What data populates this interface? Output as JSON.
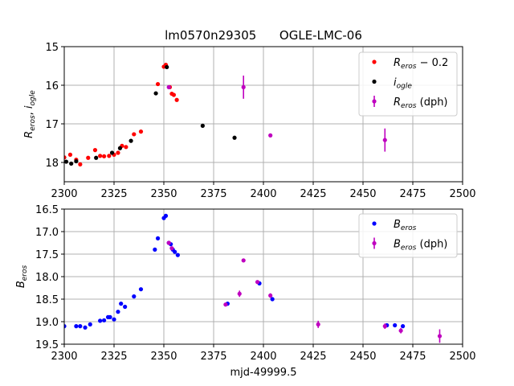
{
  "title": "lm0570n29305      OGLE-LMC-06",
  "chart_data": [
    {
      "type": "scatter",
      "ylabel": "R_eros, i_ogle",
      "xlim": [
        2300,
        2500
      ],
      "ylim": [
        18.5,
        15
      ],
      "y_inverted": true,
      "xticks": [
        2300,
        2325,
        2350,
        2375,
        2400,
        2425,
        2450,
        2475,
        2500
      ],
      "yticks": [
        15,
        16,
        17,
        18
      ],
      "grid": true,
      "legend_position": "top-right",
      "series": [
        {
          "name": "R_eros − 0.2",
          "legend_main": "R",
          "legend_sub": "eros",
          "legend_suffix": " − 0.2",
          "color": "#ff0000",
          "marker": "dot",
          "x": [
            2300,
            2303,
            2306,
            2308,
            2312,
            2315.5,
            2318,
            2320,
            2322.5,
            2325,
            2327,
            2329,
            2331,
            2335,
            2338.5,
            2347,
            2350,
            2351,
            2353,
            2354,
            2355,
            2356.5
          ],
          "y": [
            17.87,
            17.8,
            17.93,
            18.05,
            17.88,
            17.68,
            17.83,
            17.84,
            17.83,
            17.8,
            17.75,
            17.57,
            17.6,
            17.27,
            17.2,
            15.97,
            15.52,
            15.47,
            16.05,
            16.22,
            16.25,
            16.38
          ]
        },
        {
          "name": "i_ogle",
          "legend_main": "i",
          "legend_sub": "ogle",
          "legend_suffix": "",
          "color": "#000000",
          "marker": "dot",
          "x": [
            2301,
            2303.5,
            2306,
            2316,
            2324,
            2328,
            2333.5,
            2346,
            2351.5,
            2369.5,
            2385.5
          ],
          "y": [
            17.98,
            18.03,
            17.97,
            17.88,
            17.75,
            17.63,
            17.44,
            16.21,
            15.53,
            17.05,
            17.36
          ]
        },
        {
          "name": "R_eros (dph)",
          "legend_main": "R",
          "legend_sub": "eros",
          "legend_suffix": " (dph)",
          "color": "#bf00bf",
          "marker": "errorbar",
          "x": [
            2352.5,
            2390,
            2403.5,
            2461
          ],
          "y": [
            16.05,
            16.05,
            17.3,
            17.42
          ],
          "yerr": [
            0,
            0.3,
            0,
            0.3
          ]
        }
      ]
    },
    {
      "type": "scatter",
      "ylabel": "B_eros",
      "xlabel": "mjd-49999.5",
      "xlim": [
        2300,
        2500
      ],
      "ylim": [
        19.5,
        16.5
      ],
      "y_inverted": true,
      "xticks": [
        2300,
        2325,
        2350,
        2375,
        2400,
        2425,
        2450,
        2475,
        2500
      ],
      "yticks": [
        16.5,
        17.0,
        17.5,
        18.0,
        18.5,
        19.0,
        19.5
      ],
      "grid": true,
      "legend_position": "top-right",
      "series": [
        {
          "name": "B_eros",
          "legend_main": "B",
          "legend_sub": "eros",
          "legend_suffix": "",
          "color": "#0000ff",
          "marker": "dot",
          "x": [
            2300,
            2306,
            2308,
            2310.5,
            2313,
            2318,
            2320,
            2322,
            2323,
            2325,
            2327,
            2328.5,
            2330.5,
            2335,
            2338.5,
            2345.5,
            2347,
            2350,
            2351,
            2352.5,
            2353.5,
            2354.5,
            2355.5,
            2357,
            2382,
            2398,
            2404.5,
            2462,
            2466,
            2470
          ],
          "y": [
            19.1,
            19.1,
            19.1,
            19.13,
            19.06,
            18.98,
            18.97,
            18.9,
            18.9,
            18.95,
            18.78,
            18.6,
            18.67,
            18.44,
            18.28,
            17.4,
            17.15,
            16.7,
            16.65,
            17.25,
            17.28,
            17.4,
            17.45,
            17.52,
            18.6,
            18.15,
            18.5,
            19.08,
            19.08,
            19.1
          ]
        },
        {
          "name": "B_eros (dph)",
          "legend_main": "B",
          "legend_sub": "eros",
          "legend_suffix": " (dph)",
          "color": "#bf00bf",
          "marker": "errorbar",
          "x": [
            2352.5,
            2354,
            2381,
            2388,
            2390,
            2397,
            2403.5,
            2427.5,
            2461,
            2469,
            2488.5
          ],
          "y": [
            17.25,
            17.37,
            18.62,
            18.38,
            17.64,
            18.12,
            18.42,
            19.06,
            19.1,
            19.2,
            19.32
          ],
          "yerr": [
            0,
            0,
            0.04,
            0.07,
            0,
            0.03,
            0.05,
            0.08,
            0.06,
            0.06,
            0.15
          ]
        }
      ]
    }
  ]
}
